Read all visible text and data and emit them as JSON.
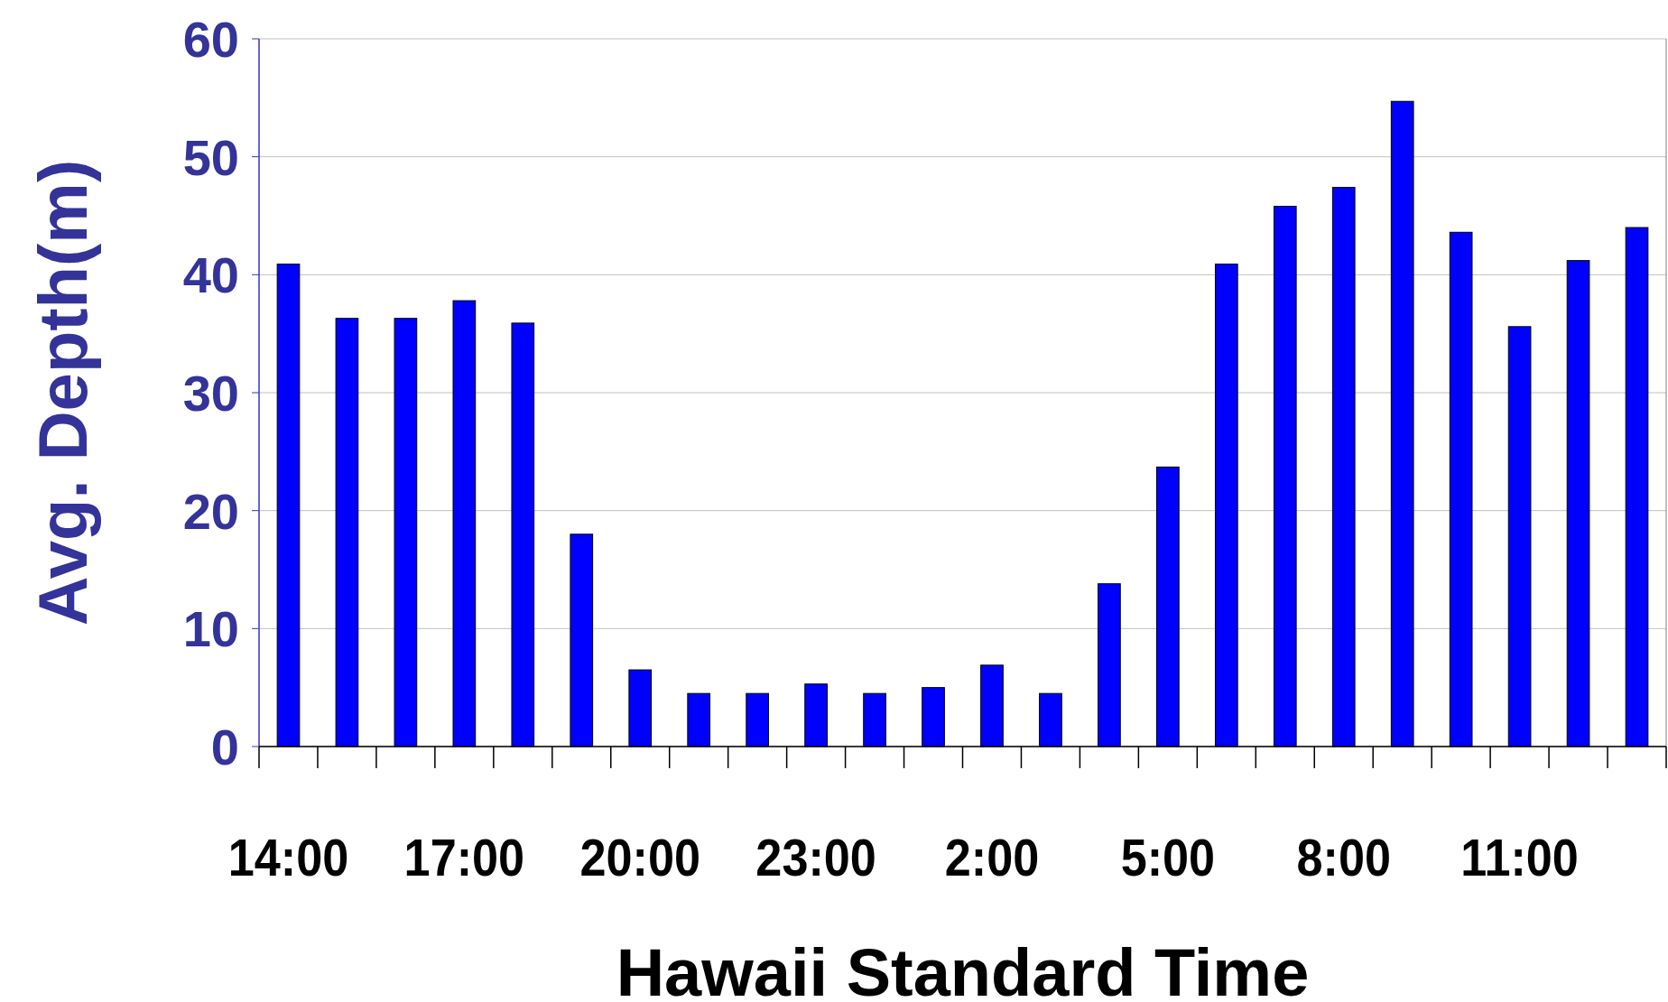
{
  "chart_data": {
    "type": "bar",
    "xlabel": "Hawaii Standard Time",
    "ylabel": "Avg. Depth(m)",
    "categories": [
      "14:00",
      null,
      null,
      "17:00",
      null,
      null,
      "20:00",
      null,
      null,
      "23:00",
      null,
      null,
      "2:00",
      null,
      null,
      "5:00",
      null,
      null,
      "8:00",
      null,
      null,
      "11:00",
      null,
      null
    ],
    "values": [
      40.9,
      36.3,
      36.3,
      37.8,
      35.9,
      18.0,
      6.5,
      4.5,
      4.5,
      5.3,
      4.5,
      5.0,
      6.9,
      4.5,
      13.8,
      23.7,
      40.9,
      45.8,
      47.4,
      54.7,
      43.6,
      35.6,
      41.2,
      44.0
    ],
    "color": "#0000ff",
    "ylim": [
      0,
      60
    ],
    "yticks": [
      0,
      10,
      20,
      30,
      40,
      50,
      60
    ],
    "grid": "y"
  }
}
